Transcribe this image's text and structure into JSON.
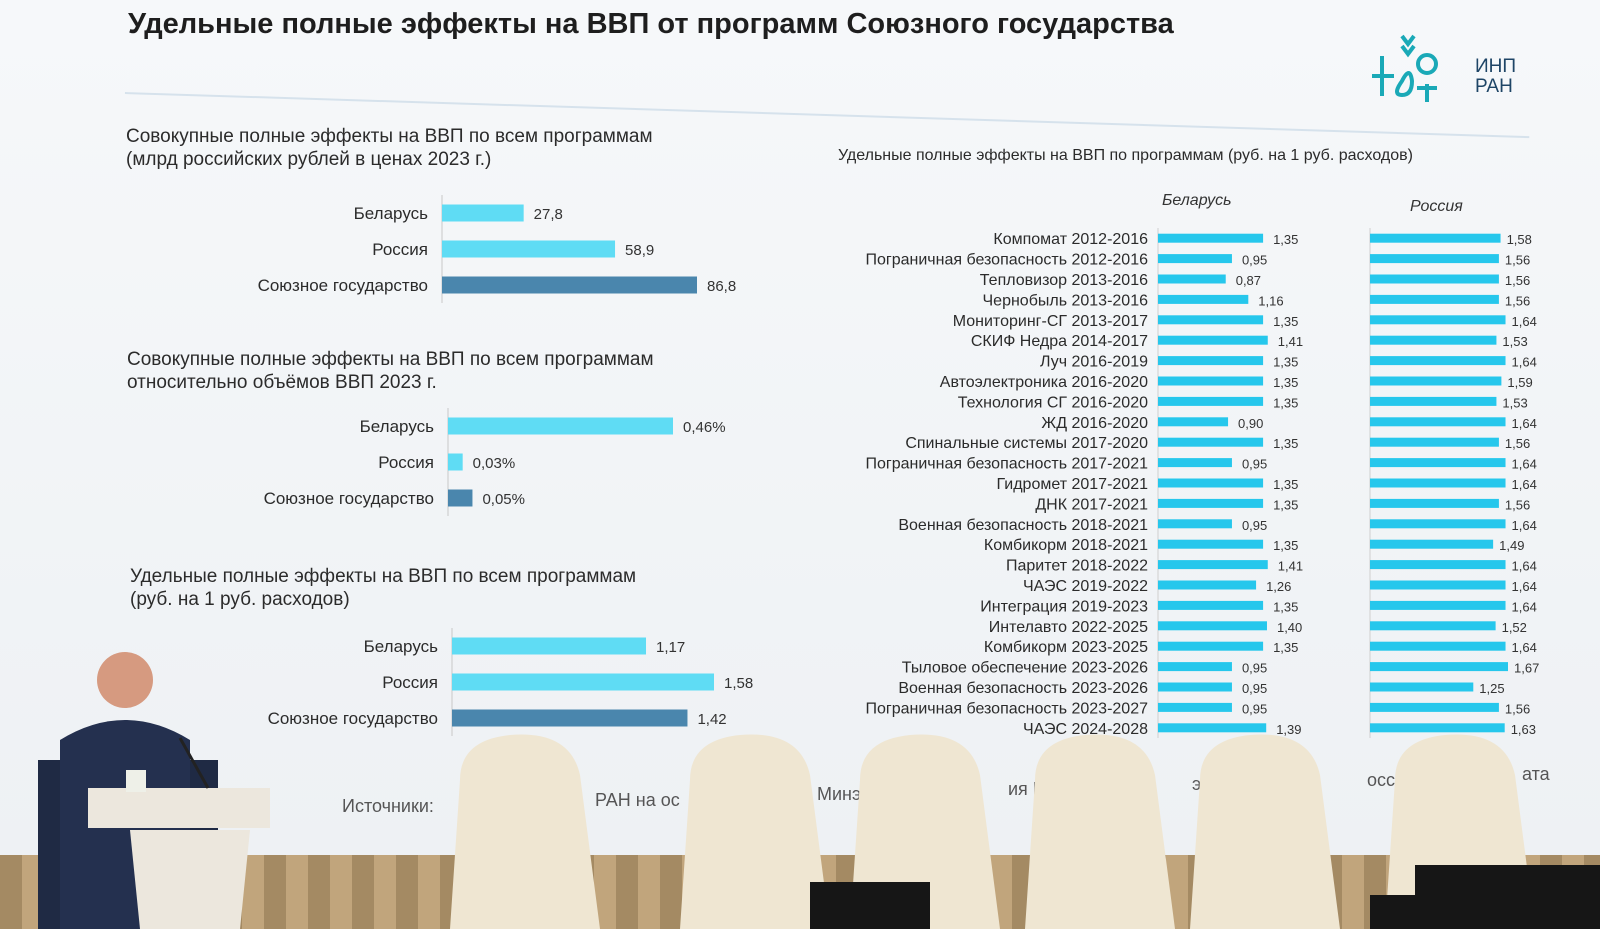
{
  "slide": {
    "title": "Удельные полные эффекты на ВВП от программ Союзного государства",
    "logo_text": [
      "ИНП",
      "РАН"
    ],
    "sources_fragments": [
      "Источники:",
      "РАН на ос",
      "Минэ",
      "ия РФ",
      "экон",
      "оссии, Б",
      "ата"
    ],
    "brand_color": "#1aa9b7"
  },
  "chart_data": [
    {
      "type": "bar",
      "title": "Совокупные полные эффекты на ВВП по всем программам\n(млрд российских рублей в ценах 2023 г.)",
      "categories": [
        "Беларусь",
        "Россия",
        "Союзное государство"
      ],
      "values": [
        27.8,
        58.9,
        86.8
      ],
      "value_labels": [
        "27,8",
        "58,9",
        "86,8"
      ],
      "colors": [
        "#5fdcf4",
        "#5fdcf4",
        "#4a86ad"
      ]
    },
    {
      "type": "bar",
      "title": "Совокупные полные эффекты на ВВП по всем программам\nотносительно объёмов ВВП 2023 г.",
      "categories": [
        "Беларусь",
        "Россия",
        "Союзное государство"
      ],
      "values": [
        0.46,
        0.03,
        0.05
      ],
      "value_labels": [
        "0,46%",
        "0,03%",
        "0,05%"
      ],
      "colors": [
        "#5fdcf4",
        "#5fdcf4",
        "#4a86ad"
      ]
    },
    {
      "type": "bar",
      "title": "Удельные полные эффекты на ВВП по всем программам\n(руб. на 1 руб. расходов)",
      "categories": [
        "Беларусь",
        "Россия",
        "Союзное государство"
      ],
      "values": [
        1.17,
        1.58,
        1.42
      ],
      "value_labels": [
        "1,17",
        "1,58",
        "1,42"
      ],
      "colors": [
        "#5fdcf4",
        "#5fdcf4",
        "#4a86ad"
      ]
    },
    {
      "type": "bar",
      "title": "Удельные полные эффекты на ВВП по программам (руб. на 1 руб. расходов)",
      "categories": [
        "Компомат 2012-2016",
        "Пограничная безопасность 2012-2016",
        "Тепловизор 2013-2016",
        "Чернобыль 2013-2016",
        "Мониторинг-СГ 2013-2017",
        "СКИФ Недра 2014-2017",
        "Луч 2016-2019",
        "Автоэлектроника 2016-2020",
        "Технология СГ 2016-2020",
        "ЖД 2016-2020",
        "Спинальные системы 2017-2020",
        "Пограничная безопасность 2017-2021",
        "Гидромет 2017-2021",
        "ДНК 2017-2021",
        "Военная безопасность 2018-2021",
        "Комбикорм 2018-2021",
        "Паритет 2018-2022",
        "ЧАЭС 2019-2022",
        "Интеграция 2019-2023",
        "Интелавто 2022-2025",
        "Комбикорм 2023-2025",
        "Тыловое обеспечение 2023-2026",
        "Военная безопасность 2023-2026",
        "Пограничная безопасность 2023-2027",
        "ЧАЭС 2024-2028"
      ],
      "series": [
        {
          "name": "Беларусь",
          "values": [
            1.35,
            0.95,
            0.87,
            1.16,
            1.35,
            1.41,
            1.35,
            1.35,
            1.35,
            0.9,
            1.35,
            0.95,
            1.35,
            1.35,
            0.95,
            1.35,
            1.41,
            1.26,
            1.35,
            1.4,
            1.35,
            0.95,
            0.95,
            0.95,
            1.39
          ],
          "value_labels": [
            "1,35",
            "0,95",
            "0,87",
            "1,16",
            "1,35",
            "1,41",
            "1,35",
            "1,35",
            "1,35",
            "0,90",
            "1,35",
            "0,95",
            "1,35",
            "1,35",
            "0,95",
            "1,35",
            "1,41",
            "1,26",
            "1,35",
            "1,40",
            "1,35",
            "0,95",
            "0,95",
            "0,95",
            "1,39"
          ]
        },
        {
          "name": "Россия",
          "values": [
            1.58,
            1.56,
            1.56,
            1.56,
            1.64,
            1.53,
            1.64,
            1.59,
            1.53,
            1.64,
            1.56,
            1.64,
            1.64,
            1.56,
            1.64,
            1.49,
            1.64,
            1.64,
            1.64,
            1.52,
            1.64,
            1.67,
            1.25,
            1.56,
            1.63
          ],
          "value_labels": [
            "1,58",
            "1,56",
            "1,56",
            "1,56",
            "1,64",
            "1,53",
            "1,64",
            "1,59",
            "1,53",
            "1,64",
            "1,56",
            "1,64",
            "1,64",
            "1,56",
            "1,64",
            "1,49",
            "1,64",
            "1,64",
            "1,64",
            "1,52",
            "1,64",
            "1,67",
            "1,25",
            "1,56",
            "1,63"
          ]
        }
      ],
      "color": "#26c7ec"
    }
  ]
}
